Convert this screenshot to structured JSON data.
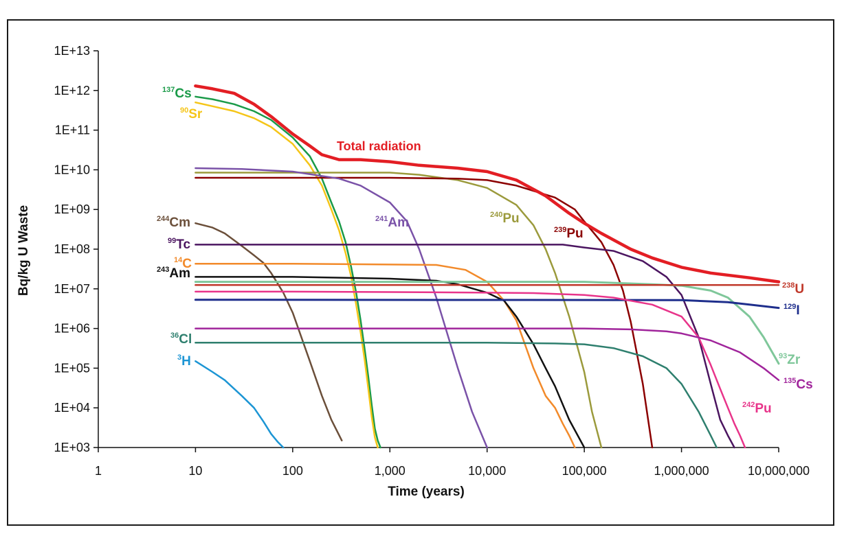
{
  "chart_data": {
    "type": "line",
    "xscale": "log",
    "yscale": "log",
    "xlim": [
      1,
      10000000
    ],
    "ylim": [
      1000,
      10000000000000
    ],
    "xlabel": "Time (years)",
    "ylabel": "Bq/kg U Waste",
    "xticks": [
      "1",
      "10",
      "100",
      "1,000",
      "10,000",
      "100,000",
      "1,000,000",
      "10,000,000"
    ],
    "yticks": [
      "1E+03",
      "1E+04",
      "1E+05",
      "1E+06",
      "1E+07",
      "1E+08",
      "1E+09",
      "1E+10",
      "1E+11",
      "1E+12",
      "1E+13"
    ],
    "grid": false,
    "series": [
      {
        "name": "Total radiation",
        "label": "Total radiation",
        "color": "#e31e24",
        "width": 4.5,
        "x": [
          10,
          15,
          25,
          40,
          60,
          100,
          150,
          200,
          300,
          500,
          1000,
          2000,
          5000,
          10000,
          20000,
          40000,
          70000,
          100000,
          150000,
          300000,
          500000,
          1000000,
          2000000,
          5000000,
          10000000
        ],
        "y": [
          1300000000000.0,
          1100000000000.0,
          850000000000.0,
          450000000000.0,
          220000000000.0,
          80000000000.0,
          40000000000.0,
          24000000000.0,
          18000000000.0,
          18000000000.0,
          16000000000.0,
          13000000000.0,
          11000000000.0,
          9000000000.0,
          5500000000.0,
          2200000000.0,
          800000000.0,
          450000000.0,
          250000000.0,
          100000000.0,
          60000000.0,
          35000000.0,
          25000000.0,
          19000000.0,
          15000000.0
        ]
      },
      {
        "name": "Cs",
        "mass": "137",
        "color": "#1a9a48",
        "width": 2.5,
        "x": [
          10,
          15,
          25,
          40,
          60,
          100,
          150,
          200,
          250,
          300,
          350,
          400,
          450,
          500,
          550,
          600,
          650,
          700,
          750,
          800
        ],
        "y": [
          700000000000.0,
          600000000000.0,
          450000000000.0,
          300000000000.0,
          180000000000.0,
          65000000000.0,
          22000000000.0,
          6000000000.0,
          1500000000.0,
          500000000.0,
          150000000.0,
          35000000.0,
          8000000.0,
          1600000.0,
          300000.0,
          60000.0,
          12000.0,
          3000.0,
          1500.0,
          1000.0
        ]
      },
      {
        "name": "Sr",
        "mass": "90",
        "color": "#f5c518",
        "width": 2.5,
        "x": [
          10,
          15,
          25,
          40,
          60,
          100,
          150,
          200,
          250,
          300,
          350,
          400,
          450,
          500,
          550,
          600,
          650,
          700,
          750
        ],
        "y": [
          500000000000.0,
          400000000000.0,
          300000000000.0,
          200000000000.0,
          120000000000.0,
          45000000000.0,
          13000000000.0,
          4000000000.0,
          1000000000.0,
          300000000.0,
          80000000.0,
          20000000.0,
          4000000.0,
          800000.0,
          160000.0,
          30000.0,
          6000.0,
          1800.0,
          1000.0
        ]
      },
      {
        "name": "Pu",
        "mass": "240",
        "color": "#9b9a3c",
        "width": 2.5,
        "x": [
          10,
          100,
          1000,
          2000,
          5000,
          10000,
          20000,
          30000,
          40000,
          50000,
          70000,
          100000,
          120000,
          150000
        ],
        "y": [
          8500000000.0,
          8500000000.0,
          8500000000.0,
          7500000000.0,
          5500000000.0,
          3500000000.0,
          1300000000.0,
          400000000.0,
          100000000.0,
          25000000.0,
          2000000.0,
          80000.0,
          8000.0,
          1000.0
        ]
      },
      {
        "name": "Pu",
        "mass": "239",
        "color": "#8b0000",
        "width": 2.5,
        "x": [
          10,
          100,
          1000,
          5000,
          10000,
          20000,
          50000,
          80000,
          100000,
          150000,
          200000,
          250000,
          300000,
          400000,
          500000
        ],
        "y": [
          6300000000.0,
          6300000000.0,
          6300000000.0,
          6000000000.0,
          5500000000.0,
          4000000000.0,
          2000000000.0,
          1000000000.0,
          500000000.0,
          150000000.0,
          40000000.0,
          9000000.0,
          1500000.0,
          40000.0,
          1000.0
        ]
      },
      {
        "name": "Am",
        "mass": "241",
        "color": "#7a52a8",
        "width": 2.5,
        "x": [
          10,
          30,
          100,
          300,
          500,
          1000,
          1500,
          2000,
          3000,
          5000,
          7000,
          10000
        ],
        "y": [
          11000000000.0,
          10500000000.0,
          9000000000.0,
          6000000000.0,
          4000000000.0,
          1500000000.0,
          500000000.0,
          100000000.0,
          6000000.0,
          100000.0,
          8000.0,
          1000.0
        ]
      },
      {
        "name": "Cm",
        "mass": "244",
        "color": "#6b4f3a",
        "width": 2.5,
        "x": [
          10,
          15,
          20,
          30,
          40,
          50,
          60,
          80,
          100,
          150,
          200,
          250,
          320
        ],
        "y": [
          450000000.0,
          350000000.0,
          250000000.0,
          120000000.0,
          70000000.0,
          45000000.0,
          25000000.0,
          8000000.0,
          2500000.0,
          150000.0,
          20000.0,
          5000.0,
          1500.0
        ]
      },
      {
        "name": "Tc",
        "mass": "99",
        "color": "#4b1560",
        "width": 2.5,
        "x": [
          10,
          100,
          1000,
          10000,
          30000,
          60000,
          100000,
          200000,
          400000,
          700000,
          1000000,
          1500000,
          2000000,
          2500000,
          3000000,
          3500000
        ],
        "y": [
          130000000.0,
          130000000.0,
          130000000.0,
          130000000.0,
          130000000.0,
          130000000.0,
          110000000.0,
          90000000.0,
          50000000.0,
          20000000.0,
          7000000.0,
          600000.0,
          40000.0,
          5000.0,
          2000.0,
          1000.0
        ]
      },
      {
        "name": "C",
        "mass": "14",
        "color": "#f28a2a",
        "width": 2.5,
        "x": [
          10,
          100,
          1000,
          3000,
          6000,
          10000,
          15000,
          20000,
          30000,
          40000,
          50000,
          60000,
          70000,
          80000
        ],
        "y": [
          43000000.0,
          43000000.0,
          41000000.0,
          40000000.0,
          30000000.0,
          15000000.0,
          5000000.0,
          1600000.0,
          100000.0,
          20000.0,
          10000.0,
          4000.0,
          2000.0,
          1000.0
        ]
      },
      {
        "name": "Am",
        "mass": "243",
        "color": "#111111",
        "width": 2.5,
        "x": [
          10,
          100,
          1000,
          3000,
          5000,
          10000,
          15000,
          20000,
          30000,
          40000,
          50000,
          70000,
          100000
        ],
        "y": [
          20000000.0,
          20000000.0,
          18000000.0,
          16000000.0,
          13000000.0,
          8000000.0,
          5000000.0,
          2000000.0,
          400000.0,
          100000.0,
          35000.0,
          5000.0,
          1000.0
        ]
      },
      {
        "name": "Zr",
        "mass": "93",
        "color": "#7fc79a",
        "width": 3,
        "x": [
          10,
          100000,
          500000,
          1000000,
          2000000,
          3000000,
          5000000,
          7000000,
          10000000
        ],
        "y": [
          15000000.0,
          15000000.0,
          13000000.0,
          12000000.0,
          9000000.0,
          6000000.0,
          2000000.0,
          600000.0,
          130000.0
        ]
      },
      {
        "name": "U",
        "mass": "238",
        "color": "#c0392b",
        "width": 2.5,
        "x": [
          10,
          10000000
        ],
        "y": [
          12500000.0,
          12500000.0
        ]
      },
      {
        "name": "I",
        "mass": "129",
        "color": "#1e2e8c",
        "width": 3,
        "x": [
          10,
          1000000,
          3000000,
          5000000,
          10000000
        ],
        "y": [
          5300000.0,
          5200000.0,
          4600000.0,
          4000000.0,
          3300000.0
        ]
      },
      {
        "name": "Pu",
        "mass": "242",
        "color": "#e8348a",
        "width": 2.5,
        "x": [
          10,
          100,
          1000,
          10000,
          30000,
          100000,
          200000,
          500000,
          1000000,
          1500000,
          2000000,
          2500000,
          3000000,
          3500000,
          4000000,
          4500000
        ],
        "y": [
          8500000.0,
          8500000.0,
          8300000.0,
          8000000.0,
          7800000.0,
          7000000.0,
          6000000.0,
          4000000.0,
          2000000.0,
          600000.0,
          120000.0,
          30000.0,
          10000.0,
          4000.0,
          2000.0,
          1000.0
        ]
      },
      {
        "name": "Cs",
        "mass": "135",
        "color": "#a0249b",
        "width": 2.5,
        "x": [
          10,
          1000,
          10000,
          100000,
          300000,
          700000,
          1000000,
          2000000,
          4000000,
          7000000,
          10000000
        ],
        "y": [
          1000000.0,
          1000000.0,
          1000000.0,
          1000000.0,
          950000.0,
          850000.0,
          750000.0,
          500000.0,
          250000.0,
          100000.0,
          50000.0
        ]
      },
      {
        "name": "Cl",
        "mass": "36",
        "color": "#2e7f6e",
        "width": 2.5,
        "x": [
          10,
          1000,
          10000,
          50000,
          100000,
          200000,
          400000,
          700000,
          1000000,
          1500000,
          2000000,
          2300000
        ],
        "y": [
          440000.0,
          440000.0,
          440000.0,
          420000.0,
          400000.0,
          320000.0,
          200000.0,
          100000.0,
          40000.0,
          8000.0,
          2000.0,
          1000.0
        ]
      },
      {
        "name": "H",
        "mass": "3",
        "color": "#1c95d4",
        "width": 2.5,
        "x": [
          10,
          15,
          20,
          30,
          40,
          50,
          60,
          70,
          80
        ],
        "y": [
          150000.0,
          80000.0,
          50000.0,
          20000.0,
          10000.0,
          4500.0,
          2200.0,
          1400.0,
          1000.0
        ]
      }
    ]
  }
}
